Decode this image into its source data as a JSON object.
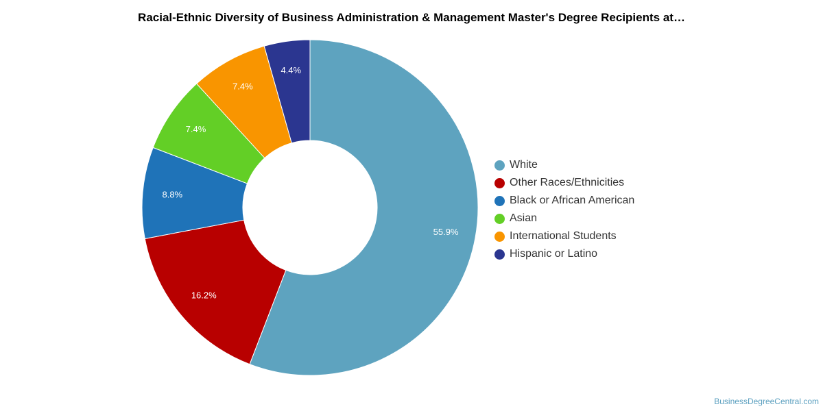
{
  "chart_data": {
    "type": "pie",
    "title": "Racial-Ethnic Diversity of Business Administration & Management Master's Degree Recipients at…",
    "categories": [
      "White",
      "Other Races/Ethnicities",
      "Black or African American",
      "Asian",
      "International Students",
      "Hispanic or Latino"
    ],
    "values": [
      55.9,
      16.2,
      8.8,
      7.4,
      7.4,
      4.4
    ],
    "labels": [
      "55.9%",
      "16.2%",
      "8.8%",
      "7.4%",
      "7.4%",
      "4.4%"
    ],
    "colors": [
      "#5ea3bf",
      "#b80000",
      "#1f73b8",
      "#63cf26",
      "#f99500",
      "#2b3690"
    ],
    "donut": true,
    "legend_position": "right"
  },
  "credit": "BusinessDegreeCentral.com"
}
